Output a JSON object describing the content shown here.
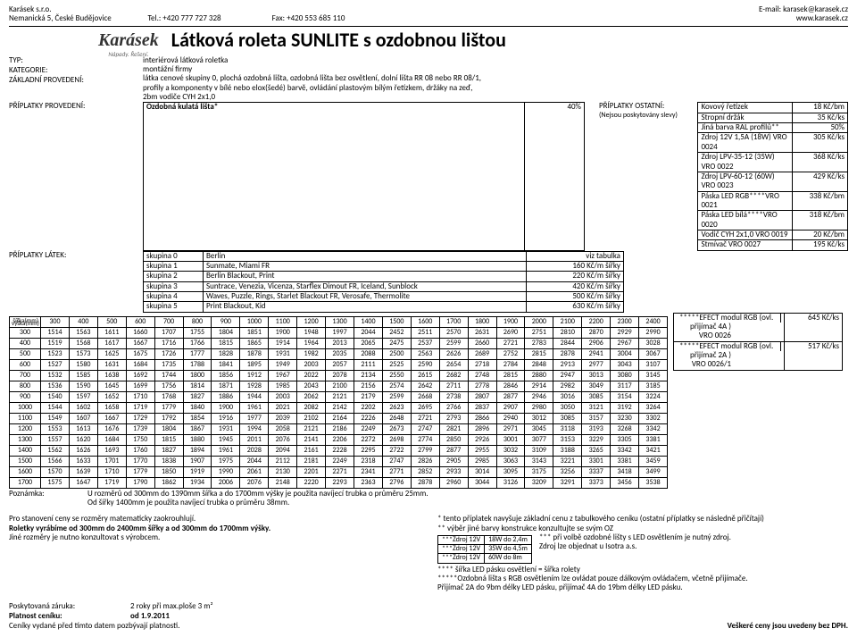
{
  "header": {
    "company": "Karásek s.r.o.",
    "address": "Nemanická 5, České Budějovice",
    "tel_label": "Tel.:",
    "tel": "+420 777 727 328",
    "fax_label": "Fax:",
    "fax": "+420 553 685 110",
    "email_label": "E-mail:",
    "email": "karasek@karasek.cz",
    "web": "www.karasek.cz"
  },
  "logo": {
    "brand": "Karásek",
    "tagline": "Nápady. Řešení."
  },
  "title": "Látková roleta SUNLITE s ozdobnou lištou",
  "meta": {
    "typ_label": "TYP:",
    "typ": "interiérová látková roletka",
    "kat_label": "KATEGORIE:",
    "kat": "montážní firmy",
    "zakl_label": "ZÁKLADNÍ PROVEDENÍ:",
    "zakl1": "látka cenové skupiny 0, plochá ozdobná lišta, ozdobná lišta bez osvětlení, dolní lišta RR 08 nebo RR 08/1,",
    "zakl2": "profily a komponenty v bílé nebo elox(šedé) barvě, ovládání plastovým bílým řetízkem, držáky na zeď,",
    "zakl3": "2bm vodiče CYH 2x1,0"
  },
  "surcharge": {
    "label": "PŘÍPLATKY PROVEDENÍ:",
    "text": "Ozdobná kulatá lišta*",
    "pct": "40%",
    "side_label": "PŘÍPLATKY OSTATNÍ:",
    "note": "(Nejsou poskytovány slevy)"
  },
  "side_items": [
    {
      "name": "Kovový řetízek",
      "price": "18 Kč/bm"
    },
    {
      "name": "Stropní držák",
      "price": "35 Kč/ks"
    },
    {
      "name": "Jiná barva RAL profilů**",
      "price": "50%"
    },
    {
      "name": "Zdroj 12V 1,5A (18W) VRO 0024",
      "price": "305 Kč/ks"
    },
    {
      "name": "Zdroj LPV-35-12 (35W) VRO 0022",
      "price": "368 Kč/ks"
    },
    {
      "name": "Zdroj LPV-60-12 (60W) VRO 0023",
      "price": "429 Kč/ks"
    },
    {
      "name": "Páska LED RGB****VRO 0021",
      "price": "338 Kč/bm"
    },
    {
      "name": "Páska LED bílá****VRO 0020",
      "price": "318 Kč/bm"
    },
    {
      "name": "Vodič CYH 2x1,0  VRO 0019",
      "price": "20 Kč/bm"
    },
    {
      "name": "Stmívač            VRO 0027",
      "price": "195 Kč/ks"
    }
  ],
  "side_extra": [
    {
      "name1": "*****EFECT modul RGB (ovl.",
      "name2": "přijímač 4A )      VRO 0026",
      "price": "645 Kč/ks"
    },
    {
      "name1": "*****EFECT modul RGB (ovl.",
      "name2": "přijímač 2A )    VRO 0026/1",
      "price": "517 Kč/ks"
    }
  ],
  "latky": {
    "label": "PŘÍPLATKY LÁTEK:",
    "rows": [
      {
        "grp": "skupina 0",
        "name": "Berlin",
        "price": "viz tabulka"
      },
      {
        "grp": "skupina 1",
        "name": "Sunmate, Miami FR",
        "price": "160 Kč/m šířky"
      },
      {
        "grp": "skupina 2",
        "name": "Berlin Blackout, Print",
        "price": "220 Kč/m šířky"
      },
      {
        "grp": "skupina 3",
        "name": "Suntrace, Venezia, Vicenza, Starflex Dimout FR, Iceland, Sunblock",
        "price": "420 Kč/m šířky"
      },
      {
        "grp": "skupina 4",
        "name": "Waves, Puzzle, Rings, Starlet Blackout FR, Verosafe, Thermolite",
        "price": "500 Kč/m šířky"
      },
      {
        "grp": "skupina 5",
        "name": "Print Blackout, Kid",
        "price": "630 Kč/m šířky"
      }
    ]
  },
  "price_table": {
    "corner_w": "šířka(mm)",
    "corner_h": "výška(mm)",
    "widths": [
      "300",
      "400",
      "500",
      "600",
      "700",
      "800",
      "900",
      "1000",
      "1100",
      "1200",
      "1300",
      "1400",
      "1500",
      "1600",
      "1700",
      "1800",
      "1900",
      "2000",
      "2100",
      "2200",
      "2300",
      "2400"
    ],
    "rows": [
      {
        "h": "300",
        "v": [
          "1514",
          "1563",
          "1611",
          "1660",
          "1707",
          "1755",
          "1804",
          "1851",
          "1900",
          "1948",
          "1997",
          "2044",
          "2452",
          "2511",
          "2570",
          "2631",
          "2690",
          "2751",
          "2810",
          "2870",
          "2929",
          "2990"
        ]
      },
      {
        "h": "400",
        "v": [
          "1519",
          "1568",
          "1617",
          "1667",
          "1716",
          "1766",
          "1815",
          "1865",
          "1914",
          "1964",
          "2013",
          "2065",
          "2475",
          "2537",
          "2599",
          "2660",
          "2721",
          "2783",
          "2844",
          "2906",
          "2967",
          "3028"
        ]
      },
      {
        "h": "500",
        "v": [
          "1523",
          "1573",
          "1625",
          "1675",
          "1726",
          "1777",
          "1828",
          "1878",
          "1931",
          "1982",
          "2035",
          "2088",
          "2500",
          "2563",
          "2626",
          "2689",
          "2752",
          "2815",
          "2878",
          "2941",
          "3004",
          "3067"
        ]
      },
      {
        "h": "600",
        "v": [
          "1527",
          "1580",
          "1631",
          "1684",
          "1735",
          "1788",
          "1841",
          "1895",
          "1949",
          "2003",
          "2057",
          "2111",
          "2525",
          "2590",
          "2654",
          "2718",
          "2784",
          "2848",
          "2913",
          "2977",
          "3043",
          "3107"
        ]
      },
      {
        "h": "700",
        "v": [
          "1532",
          "1585",
          "1638",
          "1692",
          "1744",
          "1800",
          "1856",
          "1912",
          "1967",
          "2022",
          "2078",
          "2134",
          "2550",
          "2615",
          "2682",
          "2748",
          "2815",
          "2880",
          "2947",
          "3013",
          "3080",
          "3145"
        ]
      },
      {
        "h": "800",
        "v": [
          "1536",
          "1590",
          "1645",
          "1699",
          "1756",
          "1814",
          "1871",
          "1928",
          "1985",
          "2043",
          "2100",
          "2156",
          "2574",
          "2642",
          "2711",
          "2778",
          "2846",
          "2914",
          "2982",
          "3049",
          "3117",
          "3185"
        ]
      },
      {
        "h": "900",
        "v": [
          "1540",
          "1597",
          "1652",
          "1710",
          "1768",
          "1827",
          "1886",
          "1944",
          "2003",
          "2062",
          "2121",
          "2179",
          "2599",
          "2668",
          "2738",
          "2807",
          "2877",
          "2946",
          "3016",
          "3085",
          "3154",
          "3224"
        ]
      },
      {
        "h": "1000",
        "v": [
          "1544",
          "1602",
          "1658",
          "1719",
          "1779",
          "1840",
          "1900",
          "1961",
          "2021",
          "2082",
          "2142",
          "2202",
          "2623",
          "2695",
          "2766",
          "2837",
          "2907",
          "2980",
          "3050",
          "3121",
          "3192",
          "3264"
        ]
      },
      {
        "h": "1100",
        "v": [
          "1549",
          "1607",
          "1667",
          "1729",
          "1792",
          "1854",
          "1916",
          "1977",
          "2039",
          "2102",
          "2164",
          "2226",
          "2648",
          "2721",
          "2793",
          "2866",
          "2940",
          "3012",
          "3085",
          "3157",
          "3230",
          "3302"
        ]
      },
      {
        "h": "1200",
        "v": [
          "1553",
          "1613",
          "1676",
          "1739",
          "1804",
          "1867",
          "1931",
          "1994",
          "2058",
          "2121",
          "2186",
          "2249",
          "2673",
          "2747",
          "2821",
          "2896",
          "2971",
          "3045",
          "3118",
          "3193",
          "3268",
          "3342"
        ]
      },
      {
        "h": "1300",
        "v": [
          "1557",
          "1620",
          "1684",
          "1750",
          "1815",
          "1880",
          "1945",
          "2011",
          "2076",
          "2141",
          "2206",
          "2272",
          "2698",
          "2774",
          "2850",
          "2926",
          "3001",
          "3077",
          "3153",
          "3229",
          "3305",
          "3381"
        ]
      },
      {
        "h": "1400",
        "v": [
          "1562",
          "1626",
          "1693",
          "1760",
          "1827",
          "1894",
          "1961",
          "2028",
          "2094",
          "2161",
          "2228",
          "2295",
          "2722",
          "2799",
          "2877",
          "2955",
          "3032",
          "3109",
          "3188",
          "3265",
          "3342",
          "3421"
        ]
      },
      {
        "h": "1500",
        "v": [
          "1566",
          "1633",
          "1701",
          "1770",
          "1838",
          "1907",
          "1975",
          "2044",
          "2112",
          "2181",
          "2249",
          "2318",
          "2747",
          "2826",
          "2905",
          "2985",
          "3063",
          "3143",
          "3221",
          "3301",
          "3381",
          "3459"
        ]
      },
      {
        "h": "1600",
        "v": [
          "1570",
          "1639",
          "1710",
          "1779",
          "1850",
          "1919",
          "1990",
          "2061",
          "2130",
          "2201",
          "2271",
          "2341",
          "2771",
          "2852",
          "2933",
          "3014",
          "3095",
          "3175",
          "3256",
          "3337",
          "3418",
          "3499"
        ]
      },
      {
        "h": "1700",
        "v": [
          "1575",
          "1647",
          "1719",
          "1790",
          "1862",
          "1934",
          "2006",
          "2076",
          "2148",
          "2220",
          "2293",
          "2363",
          "2796",
          "2878",
          "2960",
          "3044",
          "3126",
          "3209",
          "3291",
          "3373",
          "3456",
          "3538"
        ]
      }
    ]
  },
  "below": {
    "label": "Poznámka:",
    "l1": "U rozměrů od 300mm do 1390mm šířka a do 1700mm výšky je použita navíjecí trubka o průměru 25mm.",
    "l2": "Od šířky 1400mm je použita navíjecí trubka o průměru 38mm."
  },
  "notes_left": {
    "l1": "Pro stanovení ceny se rozměry matematicky zaokrouhlují.",
    "l2": "Roletky  vyrábíme od 300mm do 2400mm šířky a od 300mm do 1700mm výšky.",
    "l3": "Jiné rozměry je nutno konzultovat s výrobcem."
  },
  "notes_right": {
    "l1": "* tento příplatek navyšuje základní cenu z tabulkového ceníku (ostatní příplatky se následně přičítají)",
    "l2": "** výběr jiné barvy konstrukce konzultujte se svým OZ",
    "tbl": [
      [
        "***Zdroj 12V",
        "18W do 2,4m"
      ],
      [
        "***Zdroj 12V",
        "35W do 4,5m"
      ],
      [
        "***Zdroj 12V",
        "60W do 8m"
      ]
    ],
    "t1": "*** při volbě ozdobné lišty s LED osvětlením je nutný zdroj.",
    "t2": "Zdroj lze objednat u Isotra a.s.",
    "l5": "**** šířka LED pásku osvětlení = šířka rolety",
    "l6": "*****Ozdobná lišta s RGB osvětlením lze ovládat pouze dálkovým ovládačem, včetně přijímače.",
    "l7": "Přijímač 2A do 9bm délky LED pásku, přijímač 4A do 19bm délky LED pásku."
  },
  "footer": {
    "warranty_label": "Poskytovaná záruka:",
    "warranty": "2 roky při max.ploše 3 m²",
    "valid_label": "Platnost ceníku:",
    "valid": "od 1.9.2011",
    "note": "Ceníky vydané před tímto datem pozbývají platnosti.",
    "vat": "Veškeré ceny jsou uvedeny bez DPH."
  }
}
